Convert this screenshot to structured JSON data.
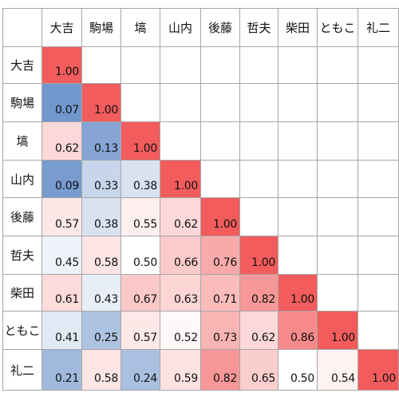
{
  "chart_data": {
    "type": "heatmap",
    "title": "",
    "x_labels": [
      "大吉",
      "駒場",
      "塙",
      "山内",
      "後藤",
      "哲夫",
      "柴田",
      "ともこ",
      "礼二"
    ],
    "y_labels": [
      "大吉",
      "駒場",
      "塙",
      "山内",
      "後藤",
      "哲夫",
      "柴田",
      "ともこ",
      "礼二"
    ],
    "values": [
      [
        1.0
      ],
      [
        0.07,
        1.0
      ],
      [
        0.62,
        0.13,
        1.0
      ],
      [
        0.09,
        0.33,
        0.38,
        1.0
      ],
      [
        0.57,
        0.38,
        0.55,
        0.62,
        1.0
      ],
      [
        0.45,
        0.58,
        0.5,
        0.66,
        0.76,
        1.0
      ],
      [
        0.61,
        0.43,
        0.67,
        0.63,
        0.71,
        0.82,
        1.0
      ],
      [
        0.41,
        0.25,
        0.57,
        0.52,
        0.73,
        0.62,
        0.86,
        1.0
      ],
      [
        0.21,
        0.58,
        0.24,
        0.59,
        0.82,
        0.65,
        0.5,
        0.54,
        1.0
      ]
    ],
    "value_format": "0.00",
    "colors": {
      "low": "#5b86c5",
      "mid": "#ffffff",
      "high": "#f25c5c"
    },
    "color_scale_midpoint": 0.5
  }
}
